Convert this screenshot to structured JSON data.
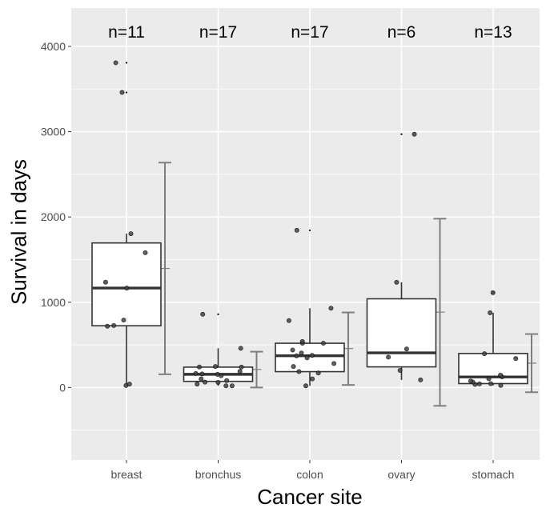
{
  "chart_data": {
    "type": "boxplot",
    "xlabel": "Cancer site",
    "ylabel": "Survival in days",
    "ylim": [
      -850,
      4450
    ],
    "yticks": [
      0,
      1000,
      2000,
      3000,
      4000
    ],
    "grid": true,
    "categories": [
      "breast",
      "bronchus",
      "colon",
      "ovary",
      "stomach"
    ],
    "counts": [
      "n=11",
      "n=17",
      "n=17",
      "n=6",
      "n=13"
    ],
    "boxes": [
      {
        "category": "breast",
        "q1": 724,
        "median": 1166,
        "q3": 1695,
        "whisker_low": 24,
        "whisker_high": 1804,
        "outliers": [
          3460,
          3808
        ]
      },
      {
        "category": "bronchus",
        "q1": 72,
        "median": 155,
        "q3": 239,
        "whisker_low": 20,
        "whisker_high": 460,
        "outliers": [
          859
        ]
      },
      {
        "category": "colon",
        "q1": 186,
        "median": 372,
        "q3": 519,
        "whisker_low": 20,
        "whisker_high": 930,
        "outliers": [
          1843
        ]
      },
      {
        "category": "ovary",
        "q1": 242,
        "median": 406,
        "q3": 1040,
        "whisker_low": 89,
        "whisker_high": 1234,
        "outliers": [
          2970
        ]
      },
      {
        "category": "stomach",
        "q1": 46,
        "median": 124,
        "q3": 399,
        "whisker_low": 25,
        "whisker_high": 876,
        "outliers": [
          1112
        ]
      }
    ],
    "mean_error_bars": [
      {
        "category": "breast",
        "mean": 1396,
        "low": 155,
        "high": 2637
      },
      {
        "category": "bronchus",
        "mean": 212,
        "low": 0,
        "high": 420
      },
      {
        "category": "colon",
        "mean": 457,
        "low": 30,
        "high": 880
      },
      {
        "category": "ovary",
        "mean": 884,
        "low": -215,
        "high": 1980
      },
      {
        "category": "stomach",
        "mean": 286,
        "low": -55,
        "high": 627
      }
    ],
    "points": [
      {
        "category": "breast",
        "values": [
          24,
          40,
          719,
          727,
          791,
          1166,
          1235,
          1581,
          1804,
          3460,
          3808
        ]
      },
      {
        "category": "bronchus",
        "values": [
          20,
          20,
          40,
          60,
          63,
          81,
          101,
          138,
          155,
          160,
          164,
          189,
          239,
          240,
          246,
          460,
          859
        ]
      },
      {
        "category": "colon",
        "values": [
          20,
          101,
          170,
          186,
          246,
          282,
          348,
          372,
          377,
          405,
          440,
          519,
          519,
          539,
          785,
          930,
          1843
        ]
      },
      {
        "category": "ovary",
        "values": [
          89,
          201,
          356,
          451,
          1234,
          2970
        ]
      },
      {
        "category": "stomach",
        "values": [
          25,
          37,
          42,
          46,
          64,
          76,
          103,
          124,
          146,
          340,
          396,
          876,
          1112
        ]
      }
    ]
  }
}
